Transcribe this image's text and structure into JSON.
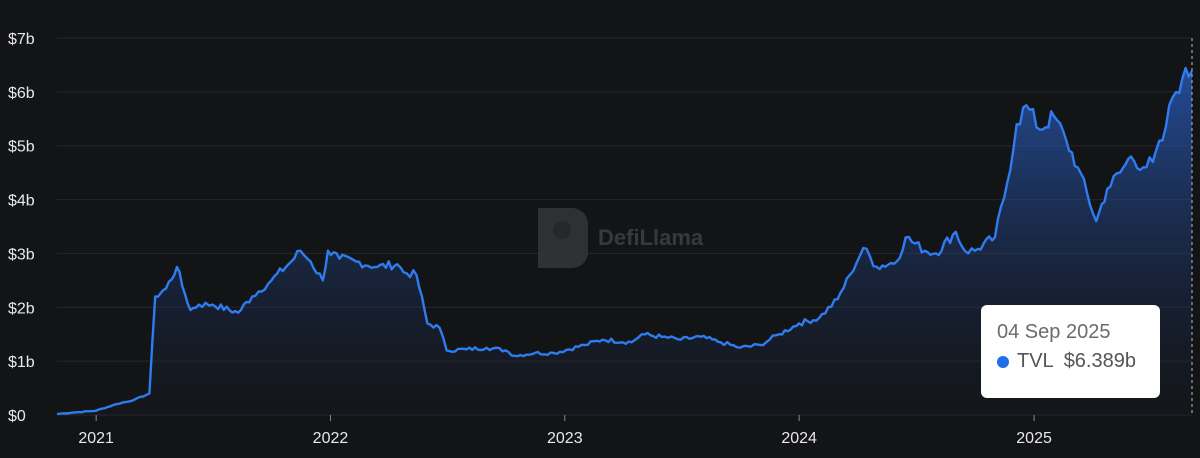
{
  "watermark": {
    "name": "DefiLlama"
  },
  "tooltip": {
    "date": "04 Sep 2025",
    "series": "TVL",
    "value": "$6.389b"
  },
  "colors": {
    "line": "#2f7bf0",
    "background": "#131416",
    "tooltip_dot": "#1f6fe5"
  },
  "chart_data": {
    "type": "area",
    "title": "",
    "xlabel": "",
    "ylabel": "",
    "ylim": [
      0,
      7
    ],
    "xlim": [
      "2020-11-01",
      "2025-09-04"
    ],
    "y_ticks": [
      {
        "value": 0,
        "label": "$0"
      },
      {
        "value": 1,
        "label": "$1b"
      },
      {
        "value": 2,
        "label": "$2b"
      },
      {
        "value": 3,
        "label": "$3b"
      },
      {
        "value": 4,
        "label": "$4b"
      },
      {
        "value": 5,
        "label": "$5b"
      },
      {
        "value": 6,
        "label": "$6b"
      },
      {
        "value": 7,
        "label": "$7b"
      }
    ],
    "x_ticks": [
      {
        "value": "2021-01-01",
        "label": "2021"
      },
      {
        "value": "2022-01-01",
        "label": "2022"
      },
      {
        "value": "2023-01-01",
        "label": "2023"
      },
      {
        "value": "2024-01-01",
        "label": "2024"
      },
      {
        "value": "2025-01-01",
        "label": "2025"
      }
    ],
    "grid": true,
    "series": [
      {
        "name": "TVL",
        "points": [
          [
            "2020-11-01",
            0.02
          ],
          [
            "2020-12-01",
            0.05
          ],
          [
            "2021-01-01",
            0.08
          ],
          [
            "2021-02-01",
            0.2
          ],
          [
            "2021-03-01",
            0.28
          ],
          [
            "2021-03-25",
            0.4
          ],
          [
            "2021-04-03",
            2.2
          ],
          [
            "2021-04-20",
            2.35
          ],
          [
            "2021-05-07",
            2.75
          ],
          [
            "2021-05-15",
            2.4
          ],
          [
            "2021-05-28",
            1.95
          ],
          [
            "2021-06-10",
            2.05
          ],
          [
            "2021-07-01",
            2.05
          ],
          [
            "2021-08-10",
            1.9
          ],
          [
            "2021-09-01",
            2.2
          ],
          [
            "2021-10-01",
            2.5
          ],
          [
            "2021-11-01",
            2.85
          ],
          [
            "2021-11-15",
            3.05
          ],
          [
            "2021-12-01",
            2.85
          ],
          [
            "2021-12-20",
            2.5
          ],
          [
            "2021-12-28",
            3.05
          ],
          [
            "2022-01-15",
            2.9
          ],
          [
            "2022-02-10",
            2.85
          ],
          [
            "2022-03-15",
            2.75
          ],
          [
            "2022-04-15",
            2.8
          ],
          [
            "2022-04-25",
            2.65
          ],
          [
            "2022-05-15",
            2.6
          ],
          [
            "2022-06-01",
            1.7
          ],
          [
            "2022-06-20",
            1.62
          ],
          [
            "2022-07-01",
            1.2
          ],
          [
            "2022-08-01",
            1.22
          ],
          [
            "2022-09-01",
            1.25
          ],
          [
            "2022-10-01",
            1.2
          ],
          [
            "2022-10-15",
            1.1
          ],
          [
            "2022-11-15",
            1.15
          ],
          [
            "2022-12-15",
            1.15
          ],
          [
            "2023-02-01",
            1.3
          ],
          [
            "2023-03-01",
            1.4
          ],
          [
            "2023-04-15",
            1.35
          ],
          [
            "2023-05-01",
            1.5
          ],
          [
            "2023-06-01",
            1.45
          ],
          [
            "2023-07-01",
            1.4
          ],
          [
            "2023-08-01",
            1.45
          ],
          [
            "2023-09-01",
            1.35
          ],
          [
            "2023-10-01",
            1.25
          ],
          [
            "2023-11-01",
            1.3
          ],
          [
            "2023-12-01",
            1.5
          ],
          [
            "2024-01-01",
            1.7
          ],
          [
            "2024-02-01",
            1.8
          ],
          [
            "2024-03-01",
            2.15
          ],
          [
            "2024-03-20",
            2.6
          ],
          [
            "2024-04-10",
            3.1
          ],
          [
            "2024-05-01",
            2.75
          ],
          [
            "2024-06-01",
            2.85
          ],
          [
            "2024-06-15",
            3.3
          ],
          [
            "2024-07-15",
            3.05
          ],
          [
            "2024-08-01",
            3.0
          ],
          [
            "2024-09-01",
            3.4
          ],
          [
            "2024-09-15",
            3.05
          ],
          [
            "2024-10-01",
            3.05
          ],
          [
            "2024-11-01",
            3.3
          ],
          [
            "2024-11-20",
            4.3
          ],
          [
            "2024-12-05",
            5.4
          ],
          [
            "2024-12-20",
            5.75
          ],
          [
            "2025-01-10",
            5.3
          ],
          [
            "2025-02-01",
            5.55
          ],
          [
            "2025-02-20",
            5.1
          ],
          [
            "2025-03-10",
            4.6
          ],
          [
            "2025-04-08",
            3.6
          ],
          [
            "2025-04-25",
            4.2
          ],
          [
            "2025-05-15",
            4.5
          ],
          [
            "2025-06-01",
            4.8
          ],
          [
            "2025-06-20",
            4.6
          ],
          [
            "2025-07-05",
            4.7
          ],
          [
            "2025-07-20",
            5.1
          ],
          [
            "2025-08-05",
            5.9
          ],
          [
            "2025-08-20",
            6.25
          ],
          [
            "2025-09-04",
            6.389
          ]
        ]
      }
    ]
  }
}
